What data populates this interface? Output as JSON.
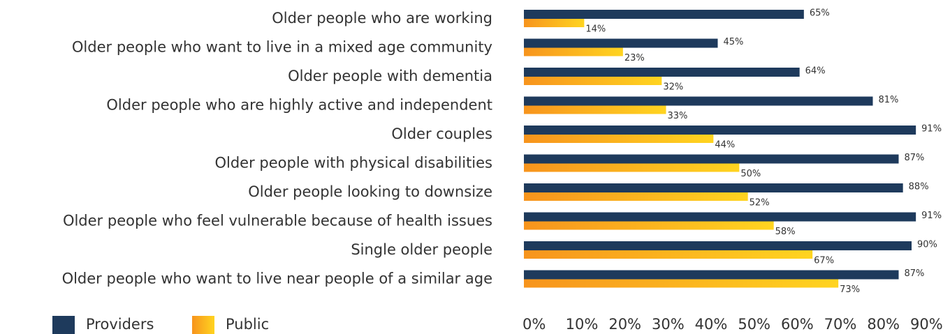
{
  "chart_data": {
    "type": "hbar",
    "categories": [
      "Older people who are working",
      "Older people who want to live in a mixed age community",
      "Older people with dementia",
      "Older people who are highly active and independent",
      "Older couples",
      "Older people with physical disabilities",
      "Older people looking to downsize",
      "Older people who feel vulnerable because of health issues",
      "Single older people",
      "Older people who want to live near people of a similar age"
    ],
    "series": [
      {
        "name": "Providers",
        "color": "#1e3a5c",
        "values": [
          65,
          45,
          64,
          81,
          91,
          87,
          88,
          91,
          90,
          87
        ],
        "value_labels": [
          "65%",
          "45%",
          "64%",
          "81%",
          "91%",
          "87%",
          "88%",
          "91%",
          "90%",
          "87%"
        ]
      },
      {
        "name": "Public",
        "color": [
          "#f7941d",
          "#ffd420"
        ],
        "values": [
          14,
          23,
          32,
          33,
          44,
          50,
          52,
          58,
          67,
          73
        ],
        "value_labels": [
          "14%",
          "23%",
          "32%",
          "33%",
          "44%",
          "50%",
          "52%",
          "58%",
          "67%",
          "73%"
        ]
      }
    ],
    "xlim": [
      0,
      90
    ],
    "xticks": [
      {
        "value": 0,
        "label": "0%"
      },
      {
        "value": 10,
        "label": "10%"
      },
      {
        "value": 20,
        "label": "20%"
      },
      {
        "value": 30,
        "label": "30%"
      },
      {
        "value": 40,
        "label": "40%"
      },
      {
        "value": 50,
        "label": "50%"
      },
      {
        "value": 60,
        "label": "60%"
      },
      {
        "value": 70,
        "label": "70%"
      },
      {
        "value": 80,
        "label": "80%"
      },
      {
        "value": 90,
        "label": "90%"
      }
    ],
    "legend": "bottom-left"
  }
}
